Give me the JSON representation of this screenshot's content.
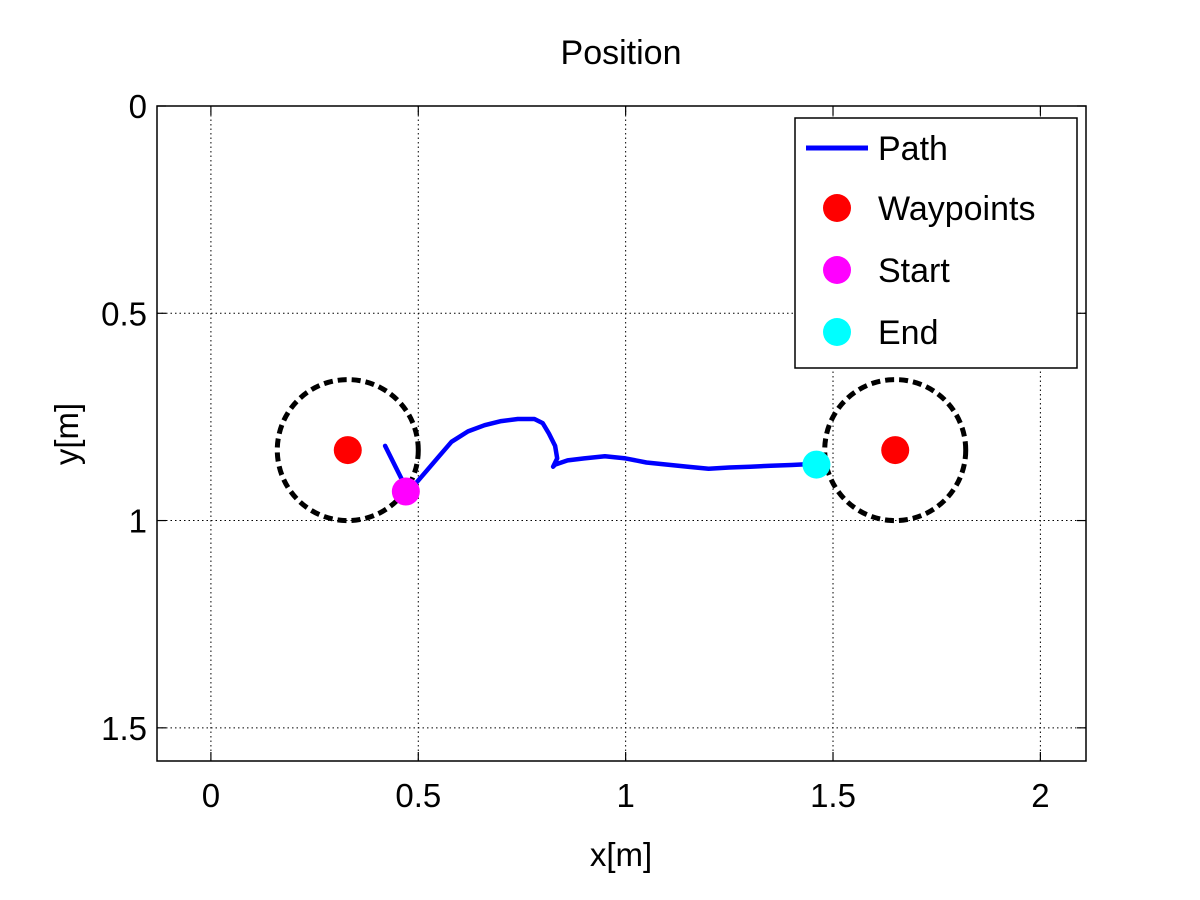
{
  "chart_data": {
    "type": "line",
    "title": "Position",
    "xlabel": "x[m]",
    "ylabel": "y[m]",
    "xlim": [
      -0.13,
      2.11
    ],
    "ylim": [
      0,
      1.58
    ],
    "y_reversed": true,
    "grid": true,
    "legend_placement": "top-right",
    "x_ticks": [
      0,
      0.5,
      1,
      1.5,
      2
    ],
    "x_tick_labels": [
      "0",
      "0.5",
      "1",
      "1.5",
      "2"
    ],
    "y_ticks": [
      0,
      0.5,
      1,
      1.5
    ],
    "y_tick_labels": [
      "0",
      "0.5",
      "1",
      "1.5"
    ],
    "legend": [
      {
        "label": "Path",
        "kind": "line",
        "color": "#0000ff"
      },
      {
        "label": "Waypoints",
        "kind": "marker",
        "color": "#ff0000"
      },
      {
        "label": "Start",
        "kind": "marker",
        "color": "#ff00ff"
      },
      {
        "label": "End",
        "kind": "marker",
        "color": "#00ffff"
      }
    ],
    "series": [
      {
        "name": "Path",
        "color": "#0000ff",
        "x": [
          0.42,
          0.47,
          0.49,
          0.52,
          0.55,
          0.58,
          0.62,
          0.66,
          0.7,
          0.74,
          0.78,
          0.8,
          0.815,
          0.83,
          0.835,
          0.825,
          0.83,
          0.86,
          0.9,
          0.95,
          1.0,
          1.05,
          1.1,
          1.15,
          1.2,
          1.25,
          1.3,
          1.35,
          1.4,
          1.46
        ],
        "y": [
          0.82,
          0.92,
          0.915,
          0.88,
          0.845,
          0.81,
          0.785,
          0.77,
          0.76,
          0.755,
          0.755,
          0.765,
          0.79,
          0.82,
          0.85,
          0.87,
          0.865,
          0.855,
          0.85,
          0.845,
          0.85,
          0.86,
          0.865,
          0.87,
          0.875,
          0.872,
          0.87,
          0.868,
          0.866,
          0.863
        ]
      }
    ],
    "waypoints": {
      "color": "#ff0000",
      "points": [
        {
          "x": 0.33,
          "y": 0.83
        },
        {
          "x": 1.65,
          "y": 0.83
        }
      ]
    },
    "waypoint_radius_m": 0.17,
    "start": {
      "x": 0.47,
      "y": 0.93,
      "color": "#ff00ff"
    },
    "end": {
      "x": 1.46,
      "y": 0.865,
      "color": "#00ffff"
    }
  }
}
